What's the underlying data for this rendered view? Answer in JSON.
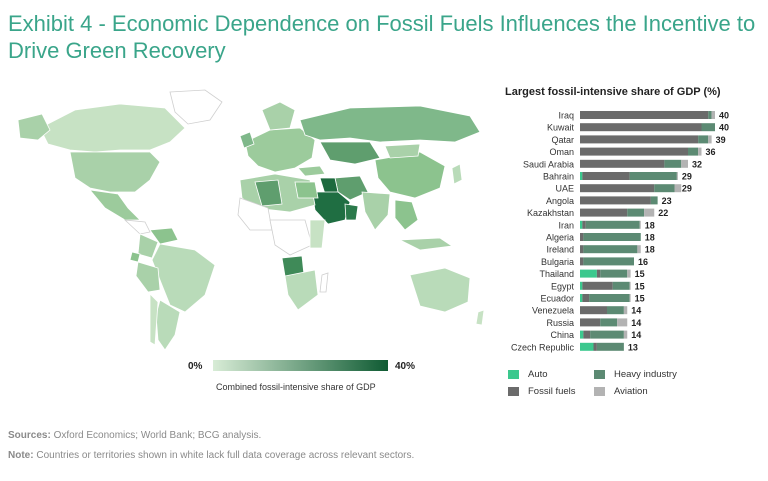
{
  "title": "Exhibit 4 - Economic Dependence on Fossil Fuels Influences the Incentive to Drive Green Recovery",
  "map": {
    "scale_min": "0%",
    "scale_max": "40%",
    "scale_label": "Combined fossil-intensive share of GDP",
    "colors": {
      "low": "#d8ecd6",
      "high": "#0f5b33",
      "missing": "#ffffff",
      "border": "#ffffff"
    }
  },
  "chart_data": {
    "type": "bar",
    "orientation": "horizontal",
    "stacked": true,
    "title": "Largest fossil-intensive share of GDP (%)",
    "xlim": [
      0,
      40
    ],
    "categories": [
      "Iraq",
      "Kuwait",
      "Qatar",
      "Oman",
      "Saudi Arabia",
      "Bahrain",
      "UAE",
      "Angola",
      "Kazakhstan",
      "Iran",
      "Algeria",
      "Ireland",
      "Bulgaria",
      "Thailand",
      "Egypt",
      "Ecuador",
      "Venezuela",
      "Russia",
      "China",
      "Czech Republic"
    ],
    "totals": [
      40,
      40,
      39,
      36,
      32,
      29,
      29,
      23,
      22,
      18,
      18,
      18,
      16,
      15,
      15,
      15,
      14,
      14,
      14,
      13
    ],
    "series": [
      {
        "name": "Auto",
        "color": "#3cc88e",
        "values": [
          0,
          0,
          0,
          0,
          0,
          0.7,
          0,
          0,
          0,
          0.7,
          0,
          0,
          0,
          5,
          0.7,
          0.7,
          0,
          0,
          1,
          4
        ]
      },
      {
        "name": "Fossil fuels",
        "color": "#6b6b6b",
        "values": [
          38,
          36,
          35,
          32,
          25,
          14,
          22,
          21,
          14,
          1,
          1,
          1,
          1,
          1,
          9,
          2,
          8,
          6,
          2,
          1
        ]
      },
      {
        "name": "Heavy industry",
        "color": "#5c8a73",
        "values": [
          1,
          4,
          3,
          3,
          5,
          14,
          6,
          2,
          5,
          16,
          17,
          16,
          15,
          8,
          5,
          12,
          5,
          5,
          10,
          8
        ]
      },
      {
        "name": "Aviation",
        "color": "#b3b3b3",
        "values": [
          1,
          0,
          1,
          1,
          2,
          0.3,
          2,
          0,
          3,
          0.3,
          0,
          1,
          0,
          1,
          0.3,
          0.3,
          1,
          3,
          1,
          0
        ]
      }
    ]
  },
  "legend": {
    "auto": "Auto",
    "heavy": "Heavy industry",
    "fossil": "Fossil fuels",
    "aviation": "Aviation"
  },
  "footer": {
    "sources_label": "Sources:",
    "sources": "Oxford Economics; World Bank; BCG analysis.",
    "note_label": "Note:",
    "note": "Countries or territories shown in white lack full data coverage across relevant sectors."
  }
}
